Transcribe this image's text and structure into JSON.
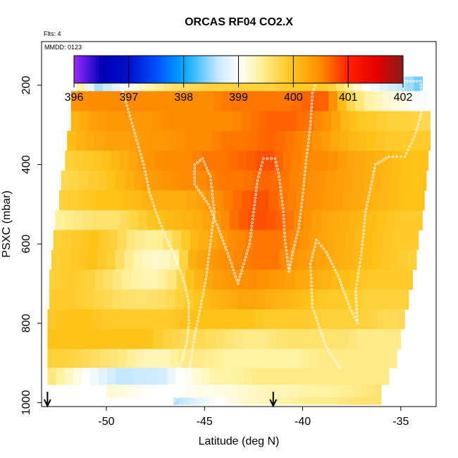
{
  "chart_data": {
    "type": "heatmap",
    "title": "ORCAS RF04 CO2.X",
    "annotations": [
      "Flts: 4",
      "MMDD: 0123"
    ],
    "xlabel": "Latitude (deg N)",
    "ylabel": "PSXC (mbar)",
    "xlim": [
      -53.3,
      -33.2
    ],
    "ylim": [
      1010,
      90
    ],
    "y_reversed": true,
    "x_ticks": [
      -50,
      -45,
      -40,
      -35
    ],
    "x_tick_labels": [
      "-50",
      "-45",
      "-40",
      "-35"
    ],
    "y_ticks": [
      200,
      400,
      600,
      800,
      1000
    ],
    "y_tick_labels": [
      "200",
      "400",
      "600",
      "800",
      "1000"
    ],
    "colorbar": {
      "min": 396,
      "max": 402,
      "ticks": [
        396,
        397,
        398,
        399,
        400,
        401,
        402
      ],
      "tick_labels": [
        "396",
        "397",
        "398",
        "399",
        "400",
        "401",
        "402"
      ],
      "stops": [
        {
          "v": 396.0,
          "c": "#9a2bff"
        },
        {
          "v": 396.5,
          "c": "#0000b8"
        },
        {
          "v": 397.0,
          "c": "#0010c8"
        },
        {
          "v": 397.5,
          "c": "#0050ff"
        },
        {
          "v": 398.0,
          "c": "#00a8ff"
        },
        {
          "v": 398.6,
          "c": "#bfe6ff"
        },
        {
          "v": 399.0,
          "c": "#ffffff"
        },
        {
          "v": 399.4,
          "c": "#fff2a0"
        },
        {
          "v": 399.8,
          "c": "#ffd23c"
        },
        {
          "v": 400.0,
          "c": "#ffc218"
        },
        {
          "v": 400.5,
          "c": "#ff8c00"
        },
        {
          "v": 401.0,
          "c": "#ff2000"
        },
        {
          "v": 401.5,
          "c": "#e80000"
        },
        {
          "v": 402.0,
          "c": "#8a1c1c"
        }
      ]
    },
    "bands": [
      {
        "p": 190,
        "x0": -51.5,
        "x1": -33.9,
        "v": [
          399.6,
          398.5,
          398.8,
          399.1,
          399.4,
          399.6,
          399.7,
          399.8,
          399.8,
          399.8,
          399.8,
          399.9,
          399.9,
          399.9,
          399.5,
          399.0,
          398.8,
          398.6,
          398.3
        ]
      },
      {
        "p": 240,
        "x0": -51.8,
        "x1": -33.7,
        "v": [
          400.4,
          400.5,
          400.5,
          400.5,
          400.5,
          400.5,
          400.5,
          400.5,
          400.6,
          400.6,
          400.6,
          400.6,
          400.7,
          400.7,
          399.8,
          399.4,
          399.2,
          399.1,
          398.9
        ]
      },
      {
        "p": 290,
        "x0": -51.8,
        "x1": -33.5,
        "v": [
          400.1,
          400.3,
          400.4,
          400.4,
          400.4,
          400.5,
          400.5,
          400.5,
          400.5,
          400.6,
          400.7,
          400.7,
          400.6,
          400.4,
          400.0,
          399.9,
          399.8,
          399.8,
          399.7
        ]
      },
      {
        "p": 340,
        "x0": -52.0,
        "x1": -33.5,
        "v": [
          400.0,
          400.2,
          400.3,
          400.3,
          400.4,
          400.4,
          400.5,
          400.5,
          400.6,
          400.6,
          400.7,
          400.6,
          400.5,
          400.3,
          400.1,
          400.0,
          399.9,
          399.9,
          399.9
        ]
      },
      {
        "p": 390,
        "x0": -52.1,
        "x1": -33.6,
        "v": [
          399.8,
          399.9,
          400.0,
          400.2,
          400.4,
          400.5,
          400.5,
          400.6,
          400.6,
          400.7,
          400.8,
          400.6,
          400.5,
          400.5,
          400.3,
          400.2,
          400.1,
          400.0,
          400.0
        ]
      },
      {
        "p": 440,
        "x0": -52.3,
        "x1": -33.7,
        "v": [
          399.7,
          399.8,
          399.9,
          400.1,
          400.3,
          400.4,
          400.5,
          400.5,
          400.6,
          400.6,
          400.7,
          400.6,
          400.5,
          400.4,
          400.3,
          400.2,
          400.1,
          400.0,
          400.0
        ]
      },
      {
        "p": 490,
        "x0": -52.4,
        "x1": -33.8,
        "v": [
          399.8,
          399.9,
          400.0,
          400.0,
          400.1,
          400.2,
          400.2,
          400.3,
          400.5,
          400.7,
          400.8,
          400.6,
          400.5,
          400.4,
          400.3,
          400.2,
          400.1,
          400.0,
          400.0
        ]
      },
      {
        "p": 540,
        "x0": -52.6,
        "x1": -33.9,
        "v": [
          399.4,
          399.5,
          399.6,
          399.6,
          399.8,
          400.0,
          400.1,
          400.2,
          400.4,
          400.7,
          400.8,
          400.7,
          400.5,
          400.3,
          400.2,
          400.1,
          400.0,
          399.9,
          399.9
        ]
      },
      {
        "p": 590,
        "x0": -52.7,
        "x1": -34.1,
        "v": [
          399.8,
          399.9,
          400.0,
          399.8,
          399.5,
          399.4,
          399.7,
          400.1,
          400.3,
          400.5,
          400.6,
          400.6,
          400.5,
          400.3,
          400.2,
          400.1,
          400.0,
          399.9,
          399.9
        ]
      },
      {
        "p": 640,
        "x0": -52.8,
        "x1": -34.2,
        "v": [
          399.8,
          399.9,
          400.0,
          399.8,
          399.4,
          399.2,
          399.3,
          400.2,
          400.4,
          400.5,
          400.6,
          400.6,
          400.4,
          400.3,
          400.2,
          400.1,
          400.0,
          399.9,
          399.8
        ]
      },
      {
        "p": 690,
        "x0": -52.9,
        "x1": -34.4,
        "v": [
          399.8,
          399.9,
          399.8,
          399.6,
          399.4,
          399.3,
          399.5,
          400.0,
          400.3,
          400.4,
          400.5,
          400.4,
          400.3,
          400.2,
          400.1,
          400.0,
          399.9,
          399.9,
          399.9
        ]
      },
      {
        "p": 740,
        "x0": -52.9,
        "x1": -34.6,
        "v": [
          399.9,
          399.9,
          399.8,
          399.7,
          399.6,
          399.6,
          399.7,
          399.9,
          400.1,
          400.2,
          400.3,
          400.2,
          400.1,
          400.0,
          399.9,
          399.9,
          399.8,
          399.8,
          399.8
        ]
      },
      {
        "p": 790,
        "x0": -53.0,
        "x1": -34.8,
        "v": [
          399.9,
          400.0,
          400.0,
          399.9,
          399.9,
          399.9,
          399.9,
          400.0,
          400.0,
          400.0,
          400.0,
          399.9,
          399.9,
          399.9,
          399.8,
          399.8,
          399.8,
          399.7,
          399.7
        ]
      },
      {
        "p": 840,
        "x0": -53.0,
        "x1": -35.0,
        "v": [
          400.0,
          400.0,
          400.0,
          400.0,
          400.0,
          400.0,
          399.8,
          399.7,
          399.7,
          399.6,
          399.5,
          399.5,
          399.6,
          399.6,
          399.6,
          399.6,
          399.5,
          399.5,
          399.5
        ]
      },
      {
        "p": 890,
        "x0": -53.0,
        "x1": -35.2,
        "v": [
          399.8,
          399.8,
          399.7,
          399.6,
          399.5,
          399.3,
          399.3,
          399.5,
          399.5,
          399.4,
          399.4,
          399.4,
          399.4,
          399.4,
          399.5,
          399.5,
          399.5,
          399.5,
          399.5
        ]
      },
      {
        "p": 935,
        "x0": -53.0,
        "x1": -35.6,
        "v": [
          399.6,
          399.3,
          399.0,
          398.8,
          398.6,
          398.7,
          398.7,
          399.0,
          399.2,
          399.4,
          399.4,
          399.5,
          399.5,
          399.5,
          399.5,
          399.5,
          399.5,
          399.5,
          399.5
        ]
      },
      {
        "p": 975,
        "x0": -50.0,
        "x1": -36.0,
        "v": [
          399.2,
          399.1,
          399.0,
          399.0,
          399.1,
          399.1,
          399.2,
          399.3,
          399.3,
          399.4,
          399.4,
          399.5,
          399.6
        ]
      },
      {
        "p": 1000,
        "x0": -46.6,
        "x1": -36.0,
        "v": [
          398.5,
          398.8,
          399.0,
          399.2,
          399.3,
          399.4,
          399.5,
          399.5,
          399.6,
          399.6
        ]
      }
    ],
    "flight_track": [
      [
        -51.0,
        190
      ],
      [
        -50.0,
        190
      ],
      [
        -49.3,
        192
      ],
      [
        -48.9,
        260
      ],
      [
        -48.5,
        330
      ],
      [
        -48.1,
        400
      ],
      [
        -47.8,
        470
      ],
      [
        -47.4,
        530
      ],
      [
        -47.0,
        580
      ],
      [
        -46.6,
        620
      ],
      [
        -46.3,
        660
      ],
      [
        -46.0,
        700
      ],
      [
        -45.8,
        750
      ],
      [
        -45.8,
        800
      ],
      [
        -45.9,
        850
      ],
      [
        -46.2,
        900
      ],
      [
        -46.5,
        950
      ],
      [
        -46.6,
        1000
      ],
      [
        -46.0,
        960
      ],
      [
        -45.7,
        900
      ],
      [
        -45.5,
        830
      ],
      [
        -45.2,
        760
      ],
      [
        -44.9,
        680
      ],
      [
        -44.7,
        600
      ],
      [
        -44.5,
        520
      ],
      [
        -44.7,
        430
      ],
      [
        -45.1,
        385
      ],
      [
        -45.5,
        400
      ],
      [
        -45.5,
        450
      ],
      [
        -44.8,
        500
      ],
      [
        -44.3,
        560
      ],
      [
        -43.7,
        640
      ],
      [
        -43.3,
        700
      ],
      [
        -43.0,
        650
      ],
      [
        -42.7,
        600
      ],
      [
        -42.5,
        520
      ],
      [
        -42.3,
        440
      ],
      [
        -42.0,
        385
      ],
      [
        -41.4,
        385
      ],
      [
        -41.2,
        430
      ],
      [
        -41.0,
        510
      ],
      [
        -40.9,
        590
      ],
      [
        -40.7,
        670
      ],
      [
        -40.5,
        620
      ],
      [
        -40.2,
        560
      ],
      [
        -40.0,
        480
      ],
      [
        -39.8,
        380
      ],
      [
        -39.6,
        300
      ],
      [
        -39.5,
        220
      ],
      [
        -39.3,
        192
      ],
      [
        -37.5,
        190
      ],
      [
        -35.0,
        190
      ],
      [
        -34.0,
        190
      ],
      [
        -33.9,
        240
      ],
      [
        -34.0,
        280
      ],
      [
        -34.3,
        330
      ],
      [
        -34.8,
        380
      ],
      [
        -35.6,
        380
      ],
      [
        -36.3,
        400
      ],
      [
        -36.8,
        520
      ],
      [
        -37.0,
        620
      ],
      [
        -37.3,
        720
      ],
      [
        -37.2,
        800
      ],
      [
        -37.6,
        760
      ],
      [
        -38.2,
        680
      ],
      [
        -38.8,
        620
      ],
      [
        -39.3,
        590
      ],
      [
        -39.6,
        650
      ],
      [
        -39.5,
        760
      ],
      [
        -38.8,
        860
      ],
      [
        -38.0,
        920
      ]
    ],
    "arrows_x": [
      -53.0,
      -41.5
    ]
  }
}
